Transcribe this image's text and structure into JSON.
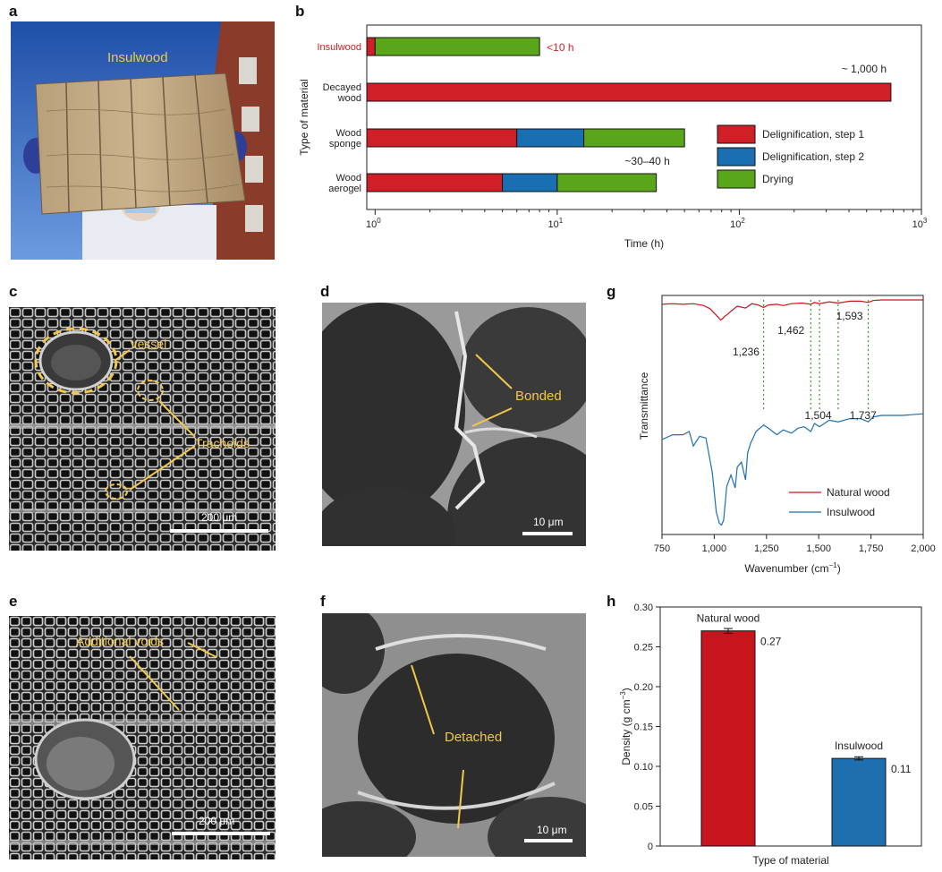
{
  "panels": {
    "a": "a",
    "b": "b",
    "c": "c",
    "d": "d",
    "e": "e",
    "f": "f",
    "g": "g",
    "h": "h"
  },
  "photo_a": {
    "label": "Insulwood"
  },
  "sem_c": {
    "labels": {
      "vessel": "Vessel",
      "tracheids": "Tracheids"
    },
    "scale": "200 μm"
  },
  "sem_d": {
    "labels": {
      "bonded": "Bonded"
    },
    "scale": "10 μm"
  },
  "sem_e": {
    "labels": {
      "voids": "Additional voids"
    },
    "scale": "200 μm"
  },
  "sem_f": {
    "labels": {
      "detached": "Detached"
    },
    "scale": "10 μm"
  },
  "colors": {
    "step1": "#d11f27",
    "step2": "#1a6fb3",
    "drying": "#5aa61a",
    "natural_wood": "#c8141c",
    "insulwood": "#1e6fb0",
    "annotation": "#f2c84b"
  },
  "chart_data": [
    {
      "panel": "b",
      "type": "bar",
      "orientation": "horizontal",
      "stacked": true,
      "xscale": "log",
      "xlim": [
        0.9,
        1000
      ],
      "xlabel": "Time (h)",
      "ylabel": "Type of material",
      "xticks": [
        {
          "value": 1,
          "base": "10",
          "exp": "0"
        },
        {
          "value": 10,
          "base": "10",
          "exp": "1"
        },
        {
          "value": 100,
          "base": "10",
          "exp": "2"
        },
        {
          "value": 1000,
          "base": "10",
          "exp": "3"
        }
      ],
      "categories": [
        {
          "lines": [
            "Insulwood"
          ],
          "highlight": true
        },
        {
          "lines": [
            "Decayed",
            "wood"
          ],
          "highlight": false
        },
        {
          "lines": [
            "Wood",
            "sponge"
          ],
          "highlight": false
        },
        {
          "lines": [
            "Wood",
            "aerogel"
          ],
          "highlight": false
        }
      ],
      "series": [
        {
          "name": "Delignification, step 1",
          "values": [
            [
              0.9,
              1.0
            ],
            [
              0.9,
              680
            ],
            [
              0.9,
              6
            ],
            [
              0.9,
              5
            ]
          ]
        },
        {
          "name": "Delignification, step 2",
          "values": [
            null,
            null,
            [
              6,
              14
            ],
            [
              5,
              10
            ]
          ]
        },
        {
          "name": "Drying",
          "values": [
            [
              1.0,
              8
            ],
            null,
            [
              14,
              50
            ],
            [
              10,
              35
            ]
          ]
        }
      ],
      "annotations": [
        {
          "text": "<10 h",
          "highlight": true
        },
        {
          "text": "~ 1,000 h",
          "highlight": false
        },
        {
          "text": "~30–40 h",
          "highlight": false
        }
      ],
      "legend_position": "bottom-right"
    },
    {
      "panel": "g",
      "type": "line",
      "xlabel": "Wavenumber (cm",
      "xlabel_sup": "−1",
      "xlabel_end": ")",
      "ylabel": "Transmittance",
      "xlim": [
        750,
        2000
      ],
      "xticks": [
        {
          "value": 750,
          "label": "750"
        },
        {
          "value": 1000,
          "label": "1,000"
        },
        {
          "value": 1250,
          "label": "1,250"
        },
        {
          "value": 1500,
          "label": "1,500"
        },
        {
          "value": 1750,
          "label": "1,750"
        },
        {
          "value": 2000,
          "label": "2,000"
        }
      ],
      "marker_lines": [
        1236,
        1462,
        1504,
        1593,
        1737
      ],
      "peak_labels": [
        {
          "value": 1236,
          "text": "1,236"
        },
        {
          "value": 1462,
          "text": "1,462"
        },
        {
          "value": 1593,
          "text": "1,593"
        },
        {
          "value": 1504,
          "text": "1,504"
        },
        {
          "value": 1737,
          "text": "1,737"
        }
      ],
      "series": [
        {
          "name": "Natural wood",
          "x": [
            750,
            800,
            850,
            900,
            950,
            980,
            1000,
            1020,
            1030,
            1040,
            1050,
            1060,
            1080,
            1110,
            1150,
            1180,
            1210,
            1236,
            1260,
            1300,
            1330,
            1370,
            1420,
            1462,
            1480,
            1504,
            1550,
            1593,
            1650,
            1700,
            1737,
            1760,
            1800,
            1900,
            2000
          ],
          "y": [
            0.93,
            0.94,
            0.93,
            0.94,
            0.91,
            0.86,
            0.79,
            0.72,
            0.68,
            0.7,
            0.74,
            0.76,
            0.82,
            0.9,
            0.87,
            0.94,
            0.92,
            0.88,
            0.92,
            0.93,
            0.91,
            0.94,
            0.95,
            0.93,
            0.96,
            0.94,
            0.97,
            0.95,
            0.98,
            0.98,
            0.96,
            0.99,
            1.0,
            1.0,
            1.0
          ]
        },
        {
          "name": "Insulwood",
          "x": [
            750,
            800,
            850,
            880,
            900,
            930,
            960,
            990,
            1010,
            1025,
            1035,
            1045,
            1060,
            1080,
            1100,
            1110,
            1130,
            1150,
            1160,
            1175,
            1200,
            1236,
            1260,
            1280,
            1300,
            1330,
            1370,
            1400,
            1430,
            1462,
            1480,
            1504,
            1550,
            1593,
            1650,
            1700,
            1737,
            1760,
            1800,
            1900,
            2000
          ],
          "y": [
            0.55,
            0.58,
            0.58,
            0.6,
            0.51,
            0.57,
            0.56,
            0.35,
            0.1,
            0.03,
            0.02,
            0.05,
            0.26,
            0.33,
            0.25,
            0.38,
            0.41,
            0.3,
            0.47,
            0.53,
            0.6,
            0.64,
            0.62,
            0.6,
            0.58,
            0.61,
            0.59,
            0.62,
            0.63,
            0.6,
            0.65,
            0.63,
            0.67,
            0.66,
            0.68,
            0.68,
            0.66,
            0.69,
            0.7,
            0.7,
            0.71
          ]
        }
      ],
      "legend_position": "bottom-right"
    },
    {
      "panel": "h",
      "type": "bar",
      "ylabel": "Density (g cm",
      "ylabel_sup": "−3",
      "ylabel_end": ")",
      "xlabel": "Type of material",
      "ylim": [
        0,
        0.3
      ],
      "yticks": [
        {
          "value": 0,
          "label": "0"
        },
        {
          "value": 0.05,
          "label": "0.05"
        },
        {
          "value": 0.1,
          "label": "0.10"
        },
        {
          "value": 0.15,
          "label": "0.15"
        },
        {
          "value": 0.2,
          "label": "0.20"
        },
        {
          "value": 0.25,
          "label": "0.25"
        },
        {
          "value": 0.3,
          "label": "0.30"
        }
      ],
      "categories": [
        "Natural wood",
        "Insulwood"
      ],
      "values": [
        0.27,
        0.11
      ],
      "errors": [
        0.003,
        0.002
      ],
      "value_labels": [
        "0.27",
        "0.11"
      ]
    }
  ]
}
